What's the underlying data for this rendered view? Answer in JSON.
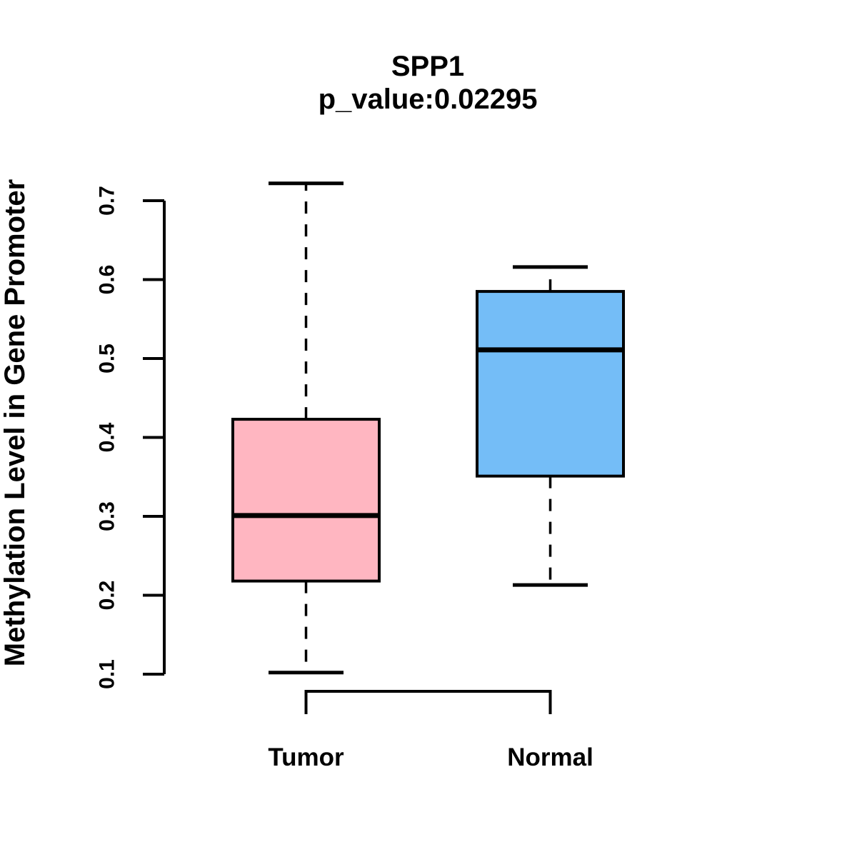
{
  "figure": {
    "background": "#FFFFFF",
    "line_color": "#000000"
  },
  "chart_data": {
    "type": "boxplot",
    "title": "SPP1",
    "subtitle": "p_value:0.02295",
    "ylabel": "Methylation Level in Gene Promoter",
    "xlabel": "",
    "categories": [
      "Tumor",
      "Normal"
    ],
    "ylim": [
      0.1,
      0.7
    ],
    "yticks": [
      0.1,
      0.2,
      0.3,
      0.4,
      0.5,
      0.6,
      0.7
    ],
    "grid": false,
    "legend": "none",
    "series": [
      {
        "name": "Tumor",
        "whisker_low": 0.102,
        "q1": 0.218,
        "median": 0.301,
        "q3": 0.423,
        "whisker_high": 0.722,
        "fill": "#FFB6C1",
        "outline": "#000000"
      },
      {
        "name": "Normal",
        "whisker_low": 0.213,
        "q1": 0.351,
        "median": 0.511,
        "q3": 0.585,
        "whisker_high": 0.616,
        "fill": "#74BDF7",
        "outline": "#000000"
      }
    ]
  }
}
